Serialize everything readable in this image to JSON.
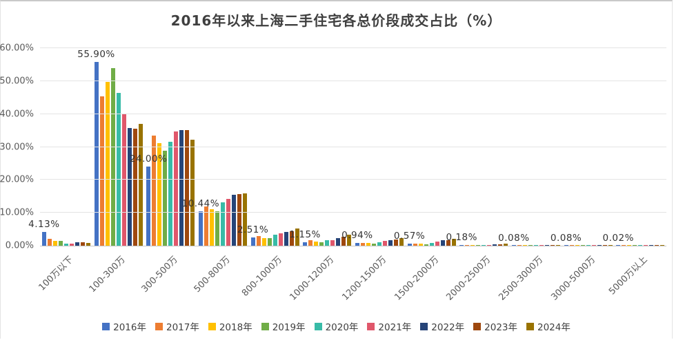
{
  "window": {
    "bg": "#ffffff",
    "border_color": "#c9c9c9"
  },
  "chart_data": {
    "type": "bar",
    "title": "2016年以来上海二手住宅各总价段成交占比（%）",
    "title_color": "#3f3f3f",
    "ylim": [
      0,
      60
    ],
    "y_ticks": [
      "0.00%",
      "10.00%",
      "20.00%",
      "30.00%",
      "40.00%",
      "50.00%",
      "60.00%"
    ],
    "grid": true,
    "legend_position": "bottom",
    "categories": [
      "100万以下",
      "100-300万",
      "300-500万",
      "500-800万",
      "800-1000万",
      "1000-1200万",
      "1200-1500万",
      "1500-2000万",
      "2000-2500万",
      "2500-3000万",
      "3000-5000万",
      "5000万以上"
    ],
    "data_labels": [
      "4.13%",
      "55.90%",
      "24.00%",
      "10.44%",
      "2.51%",
      "1.15%",
      "0.94%",
      "0.57%",
      "0.18%",
      "0.08%",
      "0.08%",
      "0.02%"
    ],
    "data_label_series": "2016年",
    "series": [
      {
        "name": "2016年",
        "color": "#4472C4",
        "values": [
          4.13,
          55.9,
          24.0,
          10.44,
          2.51,
          1.15,
          0.94,
          0.57,
          0.18,
          0.08,
          0.08,
          0.02
        ]
      },
      {
        "name": "2017年",
        "color": "#ED7D31",
        "values": [
          2.1,
          45.4,
          33.4,
          11.9,
          2.9,
          1.6,
          0.9,
          0.6,
          0.2,
          0.1,
          0.1,
          0.03
        ]
      },
      {
        "name": "2018年",
        "color": "#FFC000",
        "values": [
          1.4,
          49.8,
          31.2,
          11.1,
          2.3,
          1.3,
          0.8,
          0.7,
          0.2,
          0.1,
          0.1,
          0.05
        ]
      },
      {
        "name": "2019年",
        "color": "#70AD47",
        "values": [
          1.5,
          54.0,
          28.9,
          10.5,
          2.2,
          1.0,
          0.6,
          0.5,
          0.2,
          0.1,
          0.1,
          0.03
        ]
      },
      {
        "name": "2020年",
        "color": "#38BBA7",
        "values": [
          0.6,
          46.5,
          31.5,
          13.2,
          3.3,
          1.7,
          1.0,
          0.8,
          0.2,
          0.1,
          0.1,
          0.04
        ]
      },
      {
        "name": "2021年",
        "color": "#E0576B",
        "values": [
          0.6,
          40.0,
          34.7,
          14.2,
          3.8,
          1.6,
          1.5,
          1.2,
          0.3,
          0.15,
          0.15,
          0.05
        ]
      },
      {
        "name": "2022年",
        "color": "#264478",
        "values": [
          1.1,
          35.8,
          35.2,
          15.5,
          4.1,
          2.4,
          1.6,
          1.6,
          0.5,
          0.2,
          0.2,
          0.06
        ]
      },
      {
        "name": "2023年",
        "color": "#9E480E",
        "values": [
          1.1,
          35.5,
          35.2,
          15.7,
          4.4,
          2.7,
          1.9,
          1.6,
          0.5,
          0.2,
          0.3,
          0.08
        ]
      },
      {
        "name": "2024年",
        "color": "#997300",
        "values": [
          0.8,
          37.0,
          32.2,
          15.9,
          5.2,
          3.3,
          2.2,
          2.0,
          0.6,
          0.25,
          0.3,
          0.1
        ]
      }
    ]
  }
}
